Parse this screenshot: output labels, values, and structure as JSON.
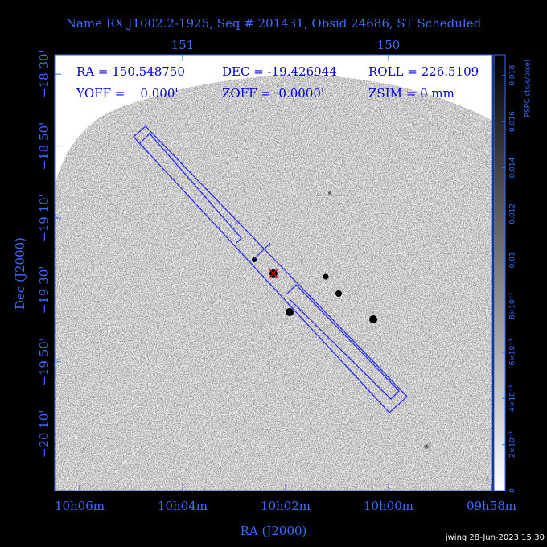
{
  "chart_data": {
    "type": "image",
    "title": "Name RX J1002.2-1925, Seq # 201431, Obsid 24686, ST Scheduled",
    "header": [
      "RA = 150.548750",
      "DEC = -19.426944",
      "ROLL = 226.5109",
      "YOFF =    0.000'",
      "ZOFF =  0.0000'",
      "ZSIM = 0 mm"
    ],
    "xlabel": "RA (J2000)",
    "ylabel": "Dec (J2000)",
    "xlim": [
      151.621,
      149.496
    ],
    "xticks": [
      {
        "value": 151.5,
        "label": "10h06m"
      },
      {
        "value": 151,
        "label": "10h04m"
      },
      {
        "value": 150.5,
        "label": "10h02m"
      },
      {
        "value": 150,
        "label": "10h00m"
      },
      {
        "value": 149.5,
        "label": "09h58m"
      }
    ],
    "x2ticks": [
      151,
      150
    ],
    "ylim": [
      -20.43,
      -18.41
    ],
    "yticks": [
      {
        "value": -18.5,
        "label": "−18 30'"
      },
      {
        "value": -18.8333,
        "label": "−18 50'"
      },
      {
        "value": -19.1667,
        "label": "−19 10'"
      },
      {
        "value": -19.5,
        "label": "−19 30'"
      },
      {
        "value": -19.8333,
        "label": "−19 50'"
      },
      {
        "value": -20.1667,
        "label": "−20 10'"
      }
    ],
    "colorbar_label": "PSPC cts/s/pixel",
    "clim": [
      0,
      0.0189
    ],
    "cticks": [
      0,
      {
        "value": 0.002,
        "label": "2×10⁻³"
      },
      {
        "value": 0.004,
        "label": "4×10⁻³"
      },
      {
        "value": 0.006,
        "label": "6×10⁻³"
      },
      {
        "value": 0.008,
        "label": "8×10⁻³"
      },
      0.01,
      0.012,
      0.014,
      0.016,
      0.018
    ],
    "footer": "jwing 28-Jun-2023 15:30"
  }
}
